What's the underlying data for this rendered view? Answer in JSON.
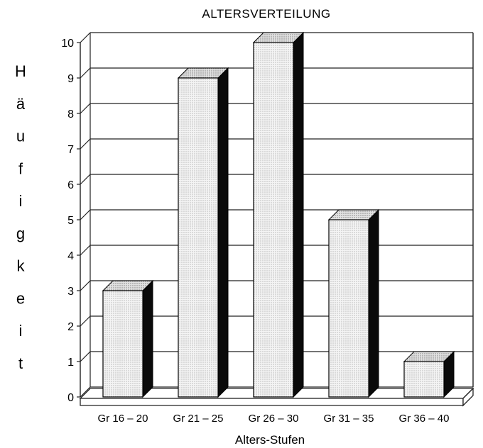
{
  "chart_data": {
    "type": "bar",
    "title": "ALTERSVERTEILUNG",
    "xlabel": "Alters-Stufen",
    "ylabel": "Häufigkeit",
    "categories": [
      "Gr 16-20",
      "Gr 21-25",
      "Gr 26-30",
      "Gr 31-35",
      "Gr 36-40"
    ],
    "values": [
      3,
      9,
      10,
      5,
      1
    ],
    "ylim": [
      0,
      10
    ],
    "yticks": [
      "0",
      "1",
      "2",
      "3",
      "4",
      "5",
      "6",
      "7",
      "8",
      "9",
      "10"
    ],
    "grid": true,
    "style": "3d",
    "colors": {
      "bar_face": "#ececec",
      "bar_side": "#0a0a0a",
      "bar_top": "#d8d8d8",
      "grid": "#222222"
    }
  }
}
